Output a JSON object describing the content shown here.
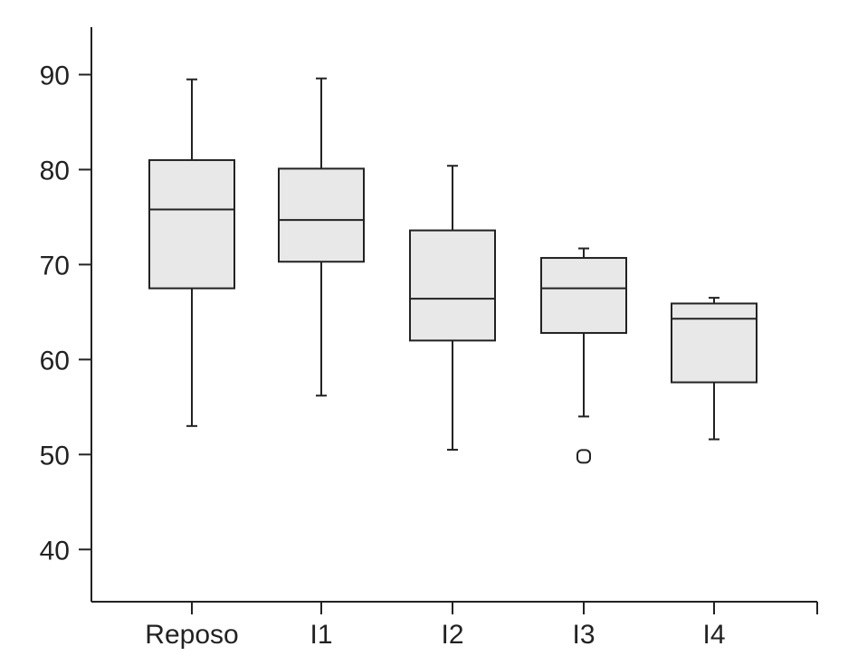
{
  "chart_data": {
    "type": "box",
    "title": "",
    "xlabel": "",
    "ylabel": "",
    "ylim": [
      34.5,
      95
    ],
    "yticks": [
      40,
      50,
      60,
      70,
      80,
      90
    ],
    "ytick_labels": [
      "40",
      "50",
      "60",
      "70",
      "80",
      "90"
    ],
    "grid": false,
    "legend": "none",
    "colors": {
      "box_fill": "#e8e8e8",
      "stroke": "#222222"
    },
    "categories": [
      "Reposo",
      "I1",
      "I2",
      "I3",
      "I4"
    ],
    "boxes": [
      {
        "label": "Reposo",
        "whisker_low": 53.0,
        "q1": 67.5,
        "median": 75.8,
        "q3": 81.0,
        "whisker_high": 89.5,
        "outliers": []
      },
      {
        "label": "I1",
        "whisker_low": 56.2,
        "q1": 70.3,
        "median": 74.7,
        "q3": 80.1,
        "whisker_high": 89.6,
        "outliers": []
      },
      {
        "label": "I2",
        "whisker_low": 50.5,
        "q1": 62.0,
        "median": 66.4,
        "q3": 73.6,
        "whisker_high": 80.4,
        "outliers": []
      },
      {
        "label": "I3",
        "whisker_low": 54.0,
        "q1": 62.8,
        "median": 67.5,
        "q3": 70.7,
        "whisker_high": 71.7,
        "outliers": [
          49.8
        ]
      },
      {
        "label": "I4",
        "whisker_low": 51.6,
        "q1": 57.6,
        "median": 64.3,
        "q3": 65.9,
        "whisker_high": 66.5,
        "outliers": []
      }
    ]
  }
}
